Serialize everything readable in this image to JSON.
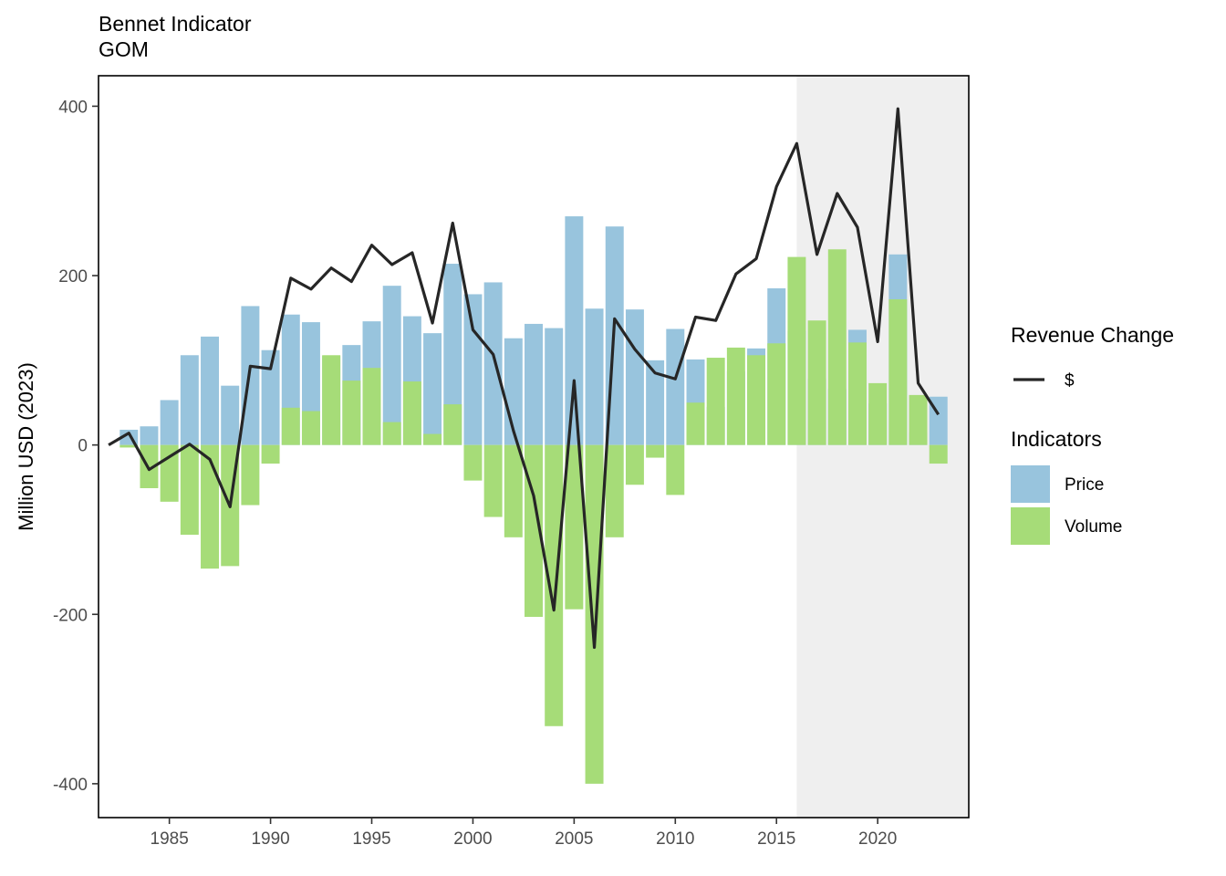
{
  "chart_data": {
    "type": "bar",
    "title": "Bennet Indicator",
    "subtitle": "GOM",
    "xlabel": "",
    "ylabel": "Million USD (2023)",
    "x": [
      1982,
      1983,
      1984,
      1985,
      1986,
      1987,
      1988,
      1989,
      1990,
      1991,
      1992,
      1993,
      1994,
      1995,
      1996,
      1997,
      1998,
      1999,
      2000,
      2001,
      2002,
      2003,
      2004,
      2005,
      2006,
      2007,
      2008,
      2009,
      2010,
      2011,
      2012,
      2013,
      2014,
      2015,
      2016,
      2017,
      2018,
      2019,
      2020,
      2021,
      2022,
      2023
    ],
    "xlim": [
      1981.5,
      2024.5
    ],
    "ylim": [
      -440,
      436
    ],
    "x_ticks": [
      1985,
      1990,
      1995,
      2000,
      2005,
      2010,
      2015,
      2020
    ],
    "x_tick_labels": [
      "1985",
      "1990",
      "1995",
      "2000",
      "2005",
      "2010",
      "2015",
      "2020"
    ],
    "y_ticks": [
      -400,
      -200,
      0,
      200,
      400
    ],
    "y_tick_labels": [
      "-400",
      "-200",
      "0",
      "200",
      "400"
    ],
    "shaded_region": {
      "from": 2016,
      "to": 2024.5,
      "color": "#efefef"
    },
    "bar_series": [
      {
        "name": "Price",
        "color": "#98c4dd",
        "values": [
          0,
          18,
          22,
          53,
          106,
          128,
          70,
          164,
          112,
          154,
          145,
          105,
          118,
          146,
          188,
          152,
          132,
          214,
          178,
          192,
          126,
          143,
          138,
          270,
          161,
          258,
          160,
          100,
          137,
          101,
          45,
          87,
          114,
          185,
          135,
          78,
          66,
          136,
          49,
          225,
          15,
          57
        ]
      },
      {
        "name": "Volume",
        "color": "#a6dc78",
        "values": [
          0,
          -3,
          -51,
          -67,
          -106,
          -146,
          -143,
          -71,
          -22,
          44,
          40,
          106,
          76,
          91,
          27,
          75,
          13,
          48,
          -42,
          -85,
          -109,
          -203,
          -332,
          -194,
          -400,
          -109,
          -47,
          -15,
          -59,
          50,
          103,
          115,
          106,
          120,
          222,
          147,
          231,
          121,
          73,
          172,
          59,
          -22
        ]
      }
    ],
    "line_series": [
      {
        "name": "$",
        "color": "#262626",
        "values": [
          0,
          14,
          -29,
          -14,
          1,
          -17,
          -73,
          93,
          90,
          197,
          184,
          209,
          193,
          236,
          213,
          227,
          144,
          262,
          136,
          107,
          17,
          -60,
          -195,
          76,
          -239,
          149,
          113,
          85,
          78,
          151,
          147,
          202,
          220,
          305,
          356,
          225,
          297,
          257,
          122,
          397,
          73,
          36
        ]
      }
    ],
    "grid": false,
    "legend_position": "right",
    "legend": [
      {
        "title": "Revenue Change",
        "entries": [
          {
            "label": "$",
            "kind": "line",
            "color": "#262626"
          }
        ]
      },
      {
        "title": "Indicators",
        "entries": [
          {
            "label": "Price",
            "kind": "fill",
            "color": "#98c4dd"
          },
          {
            "label": "Volume",
            "kind": "fill",
            "color": "#a6dc78"
          }
        ]
      }
    ]
  }
}
